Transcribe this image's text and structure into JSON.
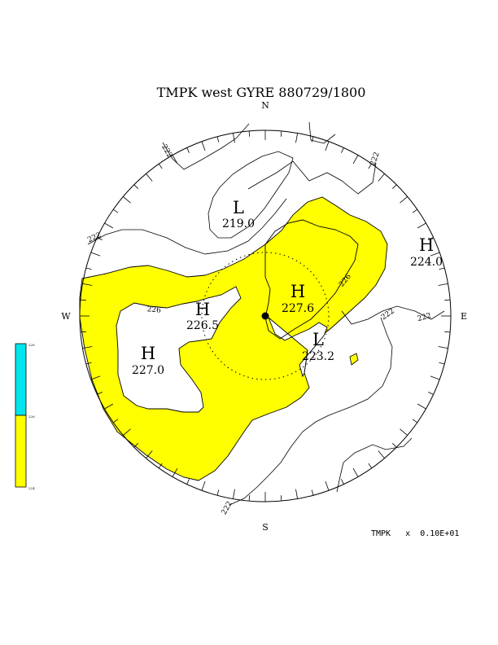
{
  "title": "TMPK west GYRE 880729/1800",
  "compass": {
    "north": "N",
    "south": "S",
    "east": "E",
    "west": "W"
  },
  "centers": [
    {
      "kind": "L",
      "value": "219.0"
    },
    {
      "kind": "H",
      "value": "224.0"
    },
    {
      "kind": "H",
      "value": "227.6"
    },
    {
      "kind": "H",
      "value": "226.5"
    },
    {
      "kind": "H",
      "value": "227.0"
    },
    {
      "kind": "L",
      "value": "223.2"
    }
  ],
  "contour_labels": [
    "222",
    "222",
    "222",
    "226",
    "226",
    "222",
    "222",
    "222"
  ],
  "colorbar": {
    "labels": [
      "228",
      "226",
      "224"
    ],
    "colors": {
      "upper": "#00e5ee",
      "lower": "#ffff00"
    }
  },
  "footer": "TMPK   x  0.10E+01",
  "colors": {
    "fill": "#ffff00",
    "line": "#000000"
  }
}
